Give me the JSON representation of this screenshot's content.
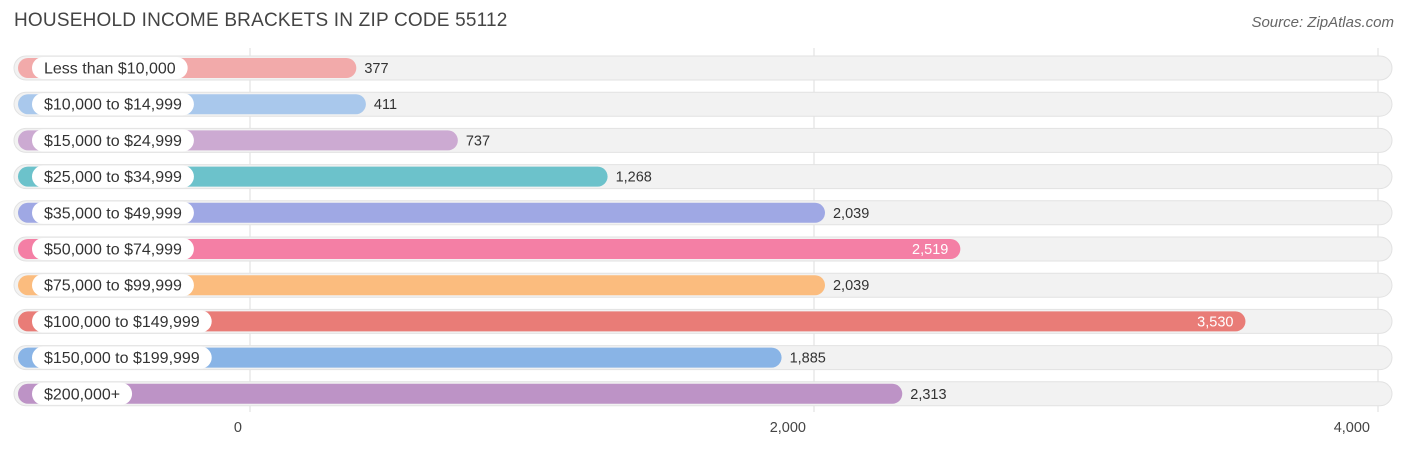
{
  "title": "HOUSEHOLD INCOME BRACKETS IN ZIP CODE 55112",
  "source": "Source: ZipAtlas.com",
  "chart_data": {
    "type": "bar",
    "orientation": "horizontal",
    "title": "HOUSEHOLD INCOME BRACKETS IN ZIP CODE 55112",
    "xlabel": "",
    "ylabel": "",
    "xlim": [
      0,
      4000
    ],
    "ticks": [
      0,
      2000,
      4000
    ],
    "tick_labels": [
      "0",
      "2,000",
      "4,000"
    ],
    "grid": true,
    "categories": [
      "Less than $10,000",
      "$10,000 to $14,999",
      "$15,000 to $24,999",
      "$25,000 to $34,999",
      "$35,000 to $49,999",
      "$50,000 to $74,999",
      "$75,000 to $99,999",
      "$100,000 to $149,999",
      "$150,000 to $199,999",
      "$200,000+"
    ],
    "values": [
      377,
      411,
      737,
      1268,
      2039,
      2519,
      2039,
      3530,
      1885,
      2313
    ],
    "value_labels": [
      "377",
      "411",
      "737",
      "1,268",
      "2,039",
      "2,519",
      "2,039",
      "3,530",
      "1,885",
      "2,313"
    ],
    "colors": [
      "#f2aaaa",
      "#a9c8ec",
      "#ccaad2",
      "#6cc2cb",
      "#9fa8e4",
      "#f47fa5",
      "#fbbc7e",
      "#e97c77",
      "#89b4e6",
      "#bd93c6"
    ]
  }
}
